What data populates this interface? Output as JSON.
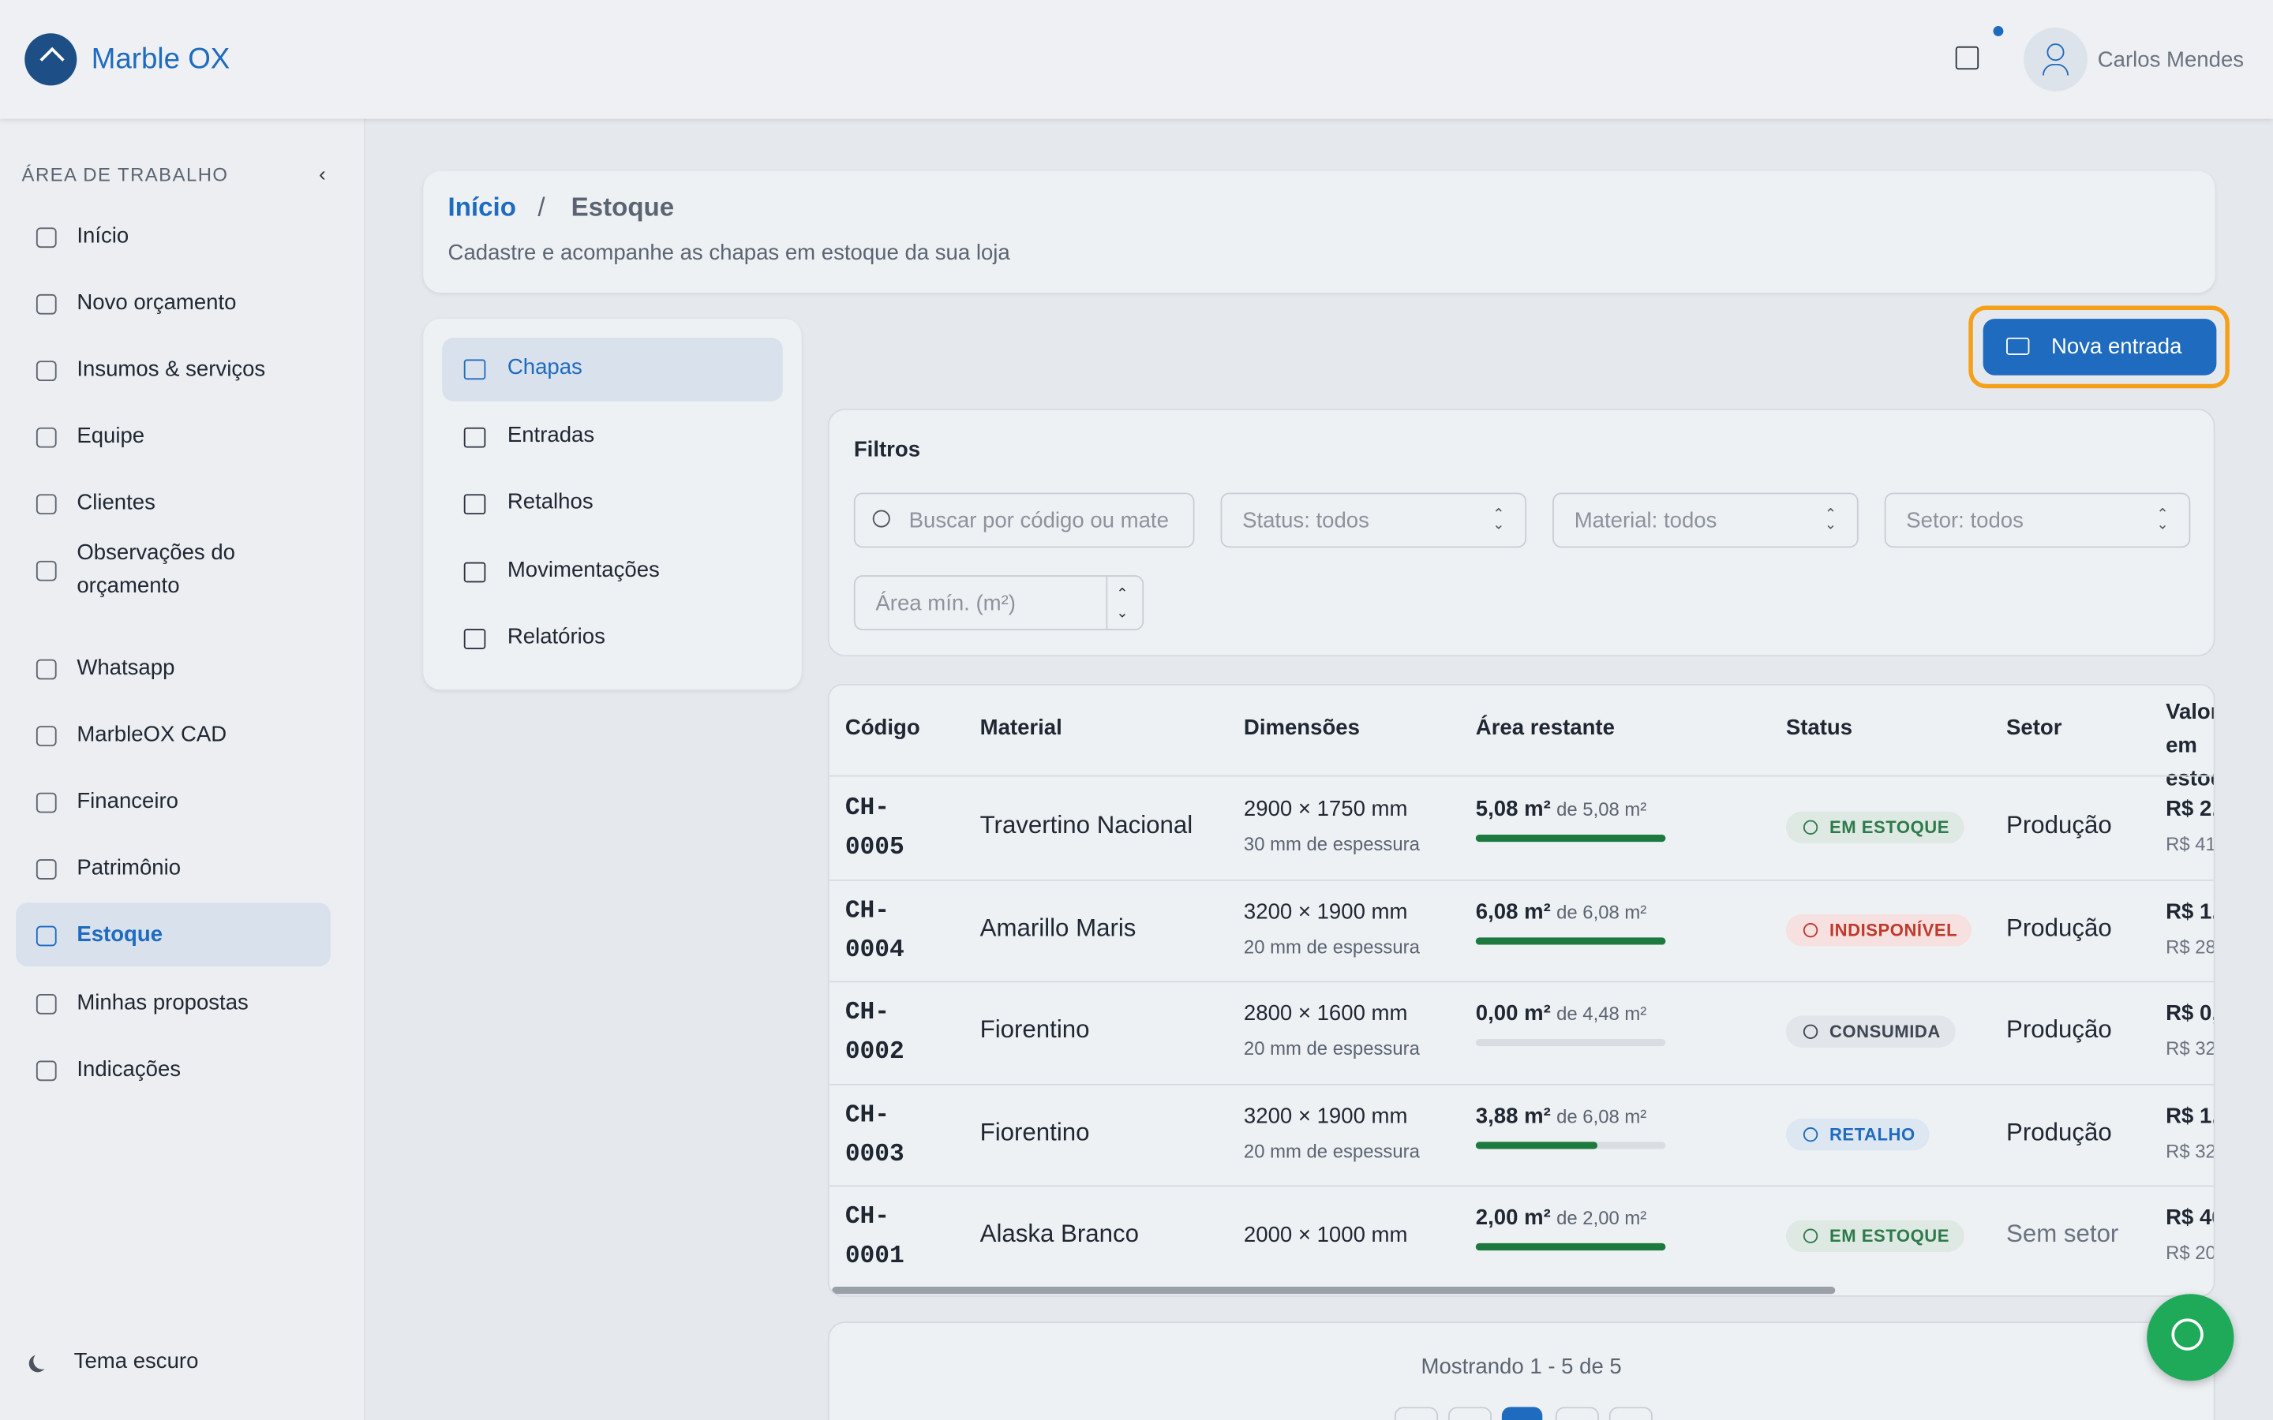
{
  "header": {
    "brand": "Marble OX",
    "user": "Carlos Mendes"
  },
  "sidebar": {
    "section": "ÁREA DE TRABALHO",
    "items": [
      "Início",
      "Novo orçamento",
      "Insumos & serviços",
      "Equipe",
      "Clientes",
      "Observações do orçamento",
      "Whatsapp",
      "MarbleOX CAD",
      "Financeiro",
      "Patrimônio",
      "Estoque",
      "Minhas propostas",
      "Indicações"
    ],
    "active": "Estoque",
    "theme": "Tema escuro"
  },
  "breadcrumb": {
    "home": "Início",
    "separator": "/",
    "current": "Estoque",
    "subtitle": "Cadastre e acompanhe as chapas em estoque da sua loja"
  },
  "subnav": {
    "items": [
      "Chapas",
      "Entradas",
      "Retalhos",
      "Movimentações",
      "Relatórios"
    ],
    "active": "Chapas"
  },
  "actions": {
    "new_entry": "Nova entrada"
  },
  "filters": {
    "title": "Filtros",
    "search": "Buscar por código ou mate",
    "status": "Status: todos",
    "material": "Material: todos",
    "sector": "Setor: todos",
    "min_area": "Área mín. (m²)"
  },
  "table": {
    "headers": [
      "Código",
      "Material",
      "Dimensões",
      "Área restante",
      "Status",
      "Setor",
      "Valor em estoque"
    ],
    "rows": [
      {
        "code": "CH-0005",
        "material": "Travertino Nacional",
        "dimensions": "2900 × 1750 mm",
        "thickness": "30 mm de espessura",
        "area": "5,08 m²",
        "of": "de 5,08 m²",
        "progress": 100,
        "status": "EM ESTOQUE",
        "status_kind": "ok",
        "sector": "Produção",
        "value": "R$ 2.",
        "value_sub": "R$ 41"
      },
      {
        "code": "CH-0004",
        "material": "Amarillo Maris",
        "dimensions": "3200 × 1900 mm",
        "thickness": "20 mm de espessura",
        "area": "6,08 m²",
        "of": "de 6,08 m²",
        "progress": 100,
        "status": "INDISPONÍVEL",
        "status_kind": "error",
        "sector": "Produção",
        "value": "R$ 1.",
        "value_sub": "R$ 28"
      },
      {
        "code": "CH-0002",
        "material": "Fiorentino",
        "dimensions": "2800 × 1600 mm",
        "thickness": "20 mm de espessura",
        "area": "0,00 m²",
        "of": "de 4,48 m²",
        "progress": 0,
        "status": "CONSUMIDA",
        "status_kind": "neutral",
        "sector": "Produção",
        "value": "R$ 0,",
        "value_sub": "R$ 32"
      },
      {
        "code": "CH-0003",
        "material": "Fiorentino",
        "dimensions": "3200 × 1900 mm",
        "thickness": "20 mm de espessura",
        "area": "3,88 m²",
        "of": "de 6,08 m²",
        "progress": 64,
        "status": "RETALHO",
        "status_kind": "info",
        "sector": "Produção",
        "value": "R$ 1.",
        "value_sub": "R$ 32"
      },
      {
        "code": "CH-0001",
        "material": "Alaska Branco",
        "dimensions": "2000 × 1000 mm",
        "area": "2,00 m²",
        "of": "de 2,00 m²",
        "progress": 100,
        "status": "EM ESTOQUE",
        "status_kind": "ok",
        "sector": "Sem setor",
        "value": "R$ 40",
        "value_sub": "R$ 20"
      }
    ]
  },
  "pagination": {
    "summary": "Mostrando 1 - 5 de 5"
  }
}
